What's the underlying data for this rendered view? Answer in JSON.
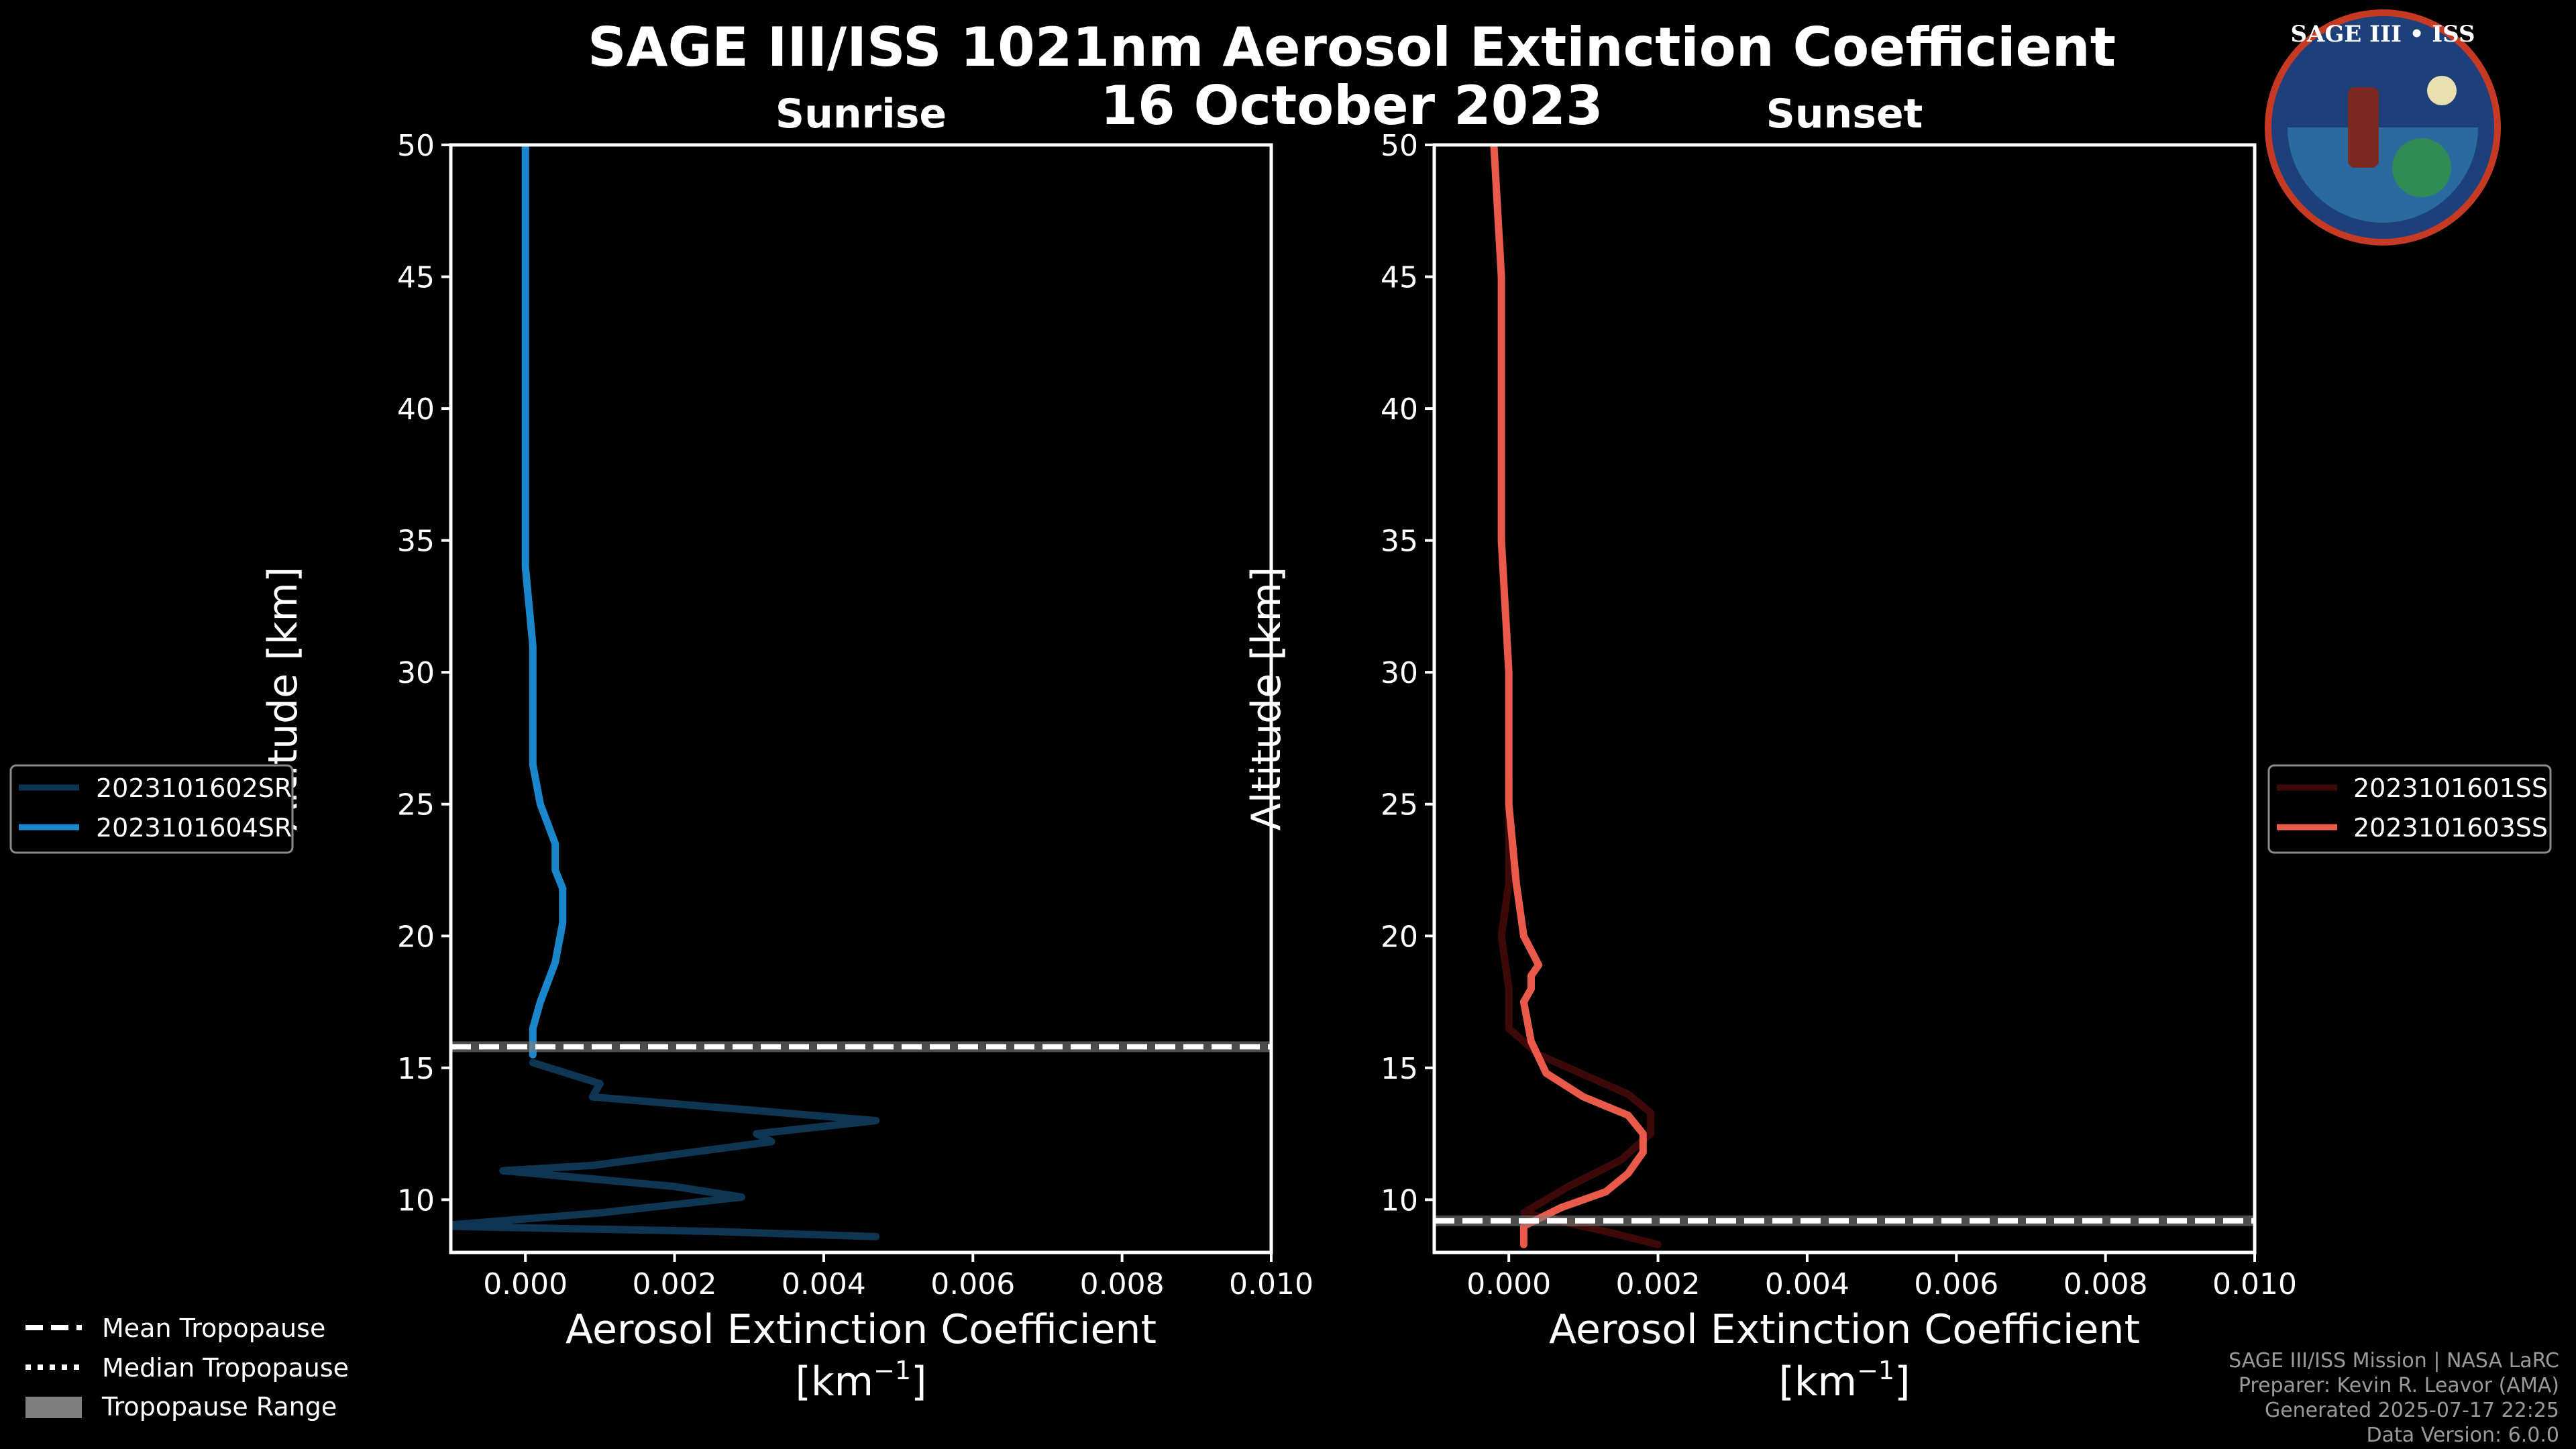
{
  "title": "SAGE III/ISS 1021nm Aerosol Extinction Coefficient",
  "date": "16 October 2023",
  "logo_text": "SAGE III • ISS",
  "chart_data": [
    {
      "type": "line",
      "panel": "sunrise",
      "title": "Sunrise",
      "xlabel": "Aerosol Extinction Coefficient",
      "xunit_prefix": "[km",
      "xunit_exp": "−1",
      "xunit_suffix": "]",
      "ylabel": "Altitude [km]",
      "xlim": [
        -0.001,
        0.01
      ],
      "ylim": [
        8,
        50
      ],
      "xticks": [
        0.0,
        0.002,
        0.004,
        0.006,
        0.008,
        0.01
      ],
      "xtick_labels": [
        "0.000",
        "0.002",
        "0.004",
        "0.006",
        "0.008",
        "0.010"
      ],
      "yticks": [
        10,
        15,
        20,
        25,
        30,
        35,
        40,
        45,
        50
      ],
      "ytick_labels": [
        "10",
        "15",
        "20",
        "25",
        "30",
        "35",
        "40",
        "45",
        "50"
      ],
      "tropopause": {
        "type": "mean",
        "altitude": 15.8
      },
      "series": [
        {
          "name": "2023101602SR",
          "color": "#0e3552",
          "x": [
            0.0047,
            0.0025,
            -0.0012,
            0.001,
            0.0029,
            0.002,
            -0.0003,
            0.0009,
            0.0033,
            0.0031,
            0.0047,
            0.0009,
            0.001,
            0.0001
          ],
          "y": [
            8.6,
            8.8,
            9.0,
            9.5,
            10.1,
            10.5,
            11.1,
            11.3,
            12.2,
            12.5,
            13.0,
            13.9,
            14.4,
            15.2
          ]
        },
        {
          "name": "2023101604SR",
          "color": "#1a87cc",
          "x": [
            0.0001,
            0.0001,
            0.0002,
            0.0004,
            0.0005,
            0.0005,
            0.0004,
            0.0004,
            0.0002,
            0.0001,
            0.0001,
            0.0001,
            0.0,
            0.0,
            0.0,
            0.0
          ],
          "y": [
            15.5,
            16.5,
            17.5,
            19.0,
            20.5,
            21.8,
            22.5,
            23.5,
            25.0,
            26.5,
            28.5,
            31.0,
            34.0,
            38.0,
            44.0,
            50.0
          ]
        }
      ],
      "legend": [
        "2023101602SR",
        "2023101604SR"
      ]
    },
    {
      "type": "line",
      "panel": "sunset",
      "title": "Sunset",
      "xlabel": "Aerosol Extinction Coefficient",
      "xunit_prefix": "[km",
      "xunit_exp": "−1",
      "xunit_suffix": "]",
      "ylabel": "Altitude [km]",
      "xlim": [
        -0.001,
        0.01
      ],
      "ylim": [
        8,
        50
      ],
      "xticks": [
        0.0,
        0.002,
        0.004,
        0.006,
        0.008,
        0.01
      ],
      "xtick_labels": [
        "0.000",
        "0.002",
        "0.004",
        "0.006",
        "0.008",
        "0.010"
      ],
      "yticks": [
        10,
        15,
        20,
        25,
        30,
        35,
        40,
        45,
        50
      ],
      "ytick_labels": [
        "10",
        "15",
        "20",
        "25",
        "30",
        "35",
        "40",
        "45",
        "50"
      ],
      "tropopause": {
        "type": "mean",
        "altitude": 9.2
      },
      "series": [
        {
          "name": "2023101601SS",
          "color": "#3d0808",
          "x": [
            0.002,
            0.0013,
            0.0002,
            0.0008,
            0.0015,
            0.0019,
            0.0019,
            0.0016,
            0.0012,
            0.0004,
            0.0,
            0.0,
            -0.0001,
            0.0,
            0.0,
            0.0
          ],
          "y": [
            8.3,
            8.8,
            9.5,
            10.5,
            11.5,
            12.5,
            13.3,
            14.0,
            14.5,
            15.5,
            16.5,
            18.0,
            20.0,
            22.0,
            24.0,
            26.0
          ]
        },
        {
          "name": "2023101603SS",
          "color": "#ea5a4a",
          "x": [
            0.0002,
            0.0002,
            0.0007,
            0.0013,
            0.0016,
            0.0018,
            0.0018,
            0.0016,
            0.001,
            0.0005,
            0.0003,
            0.0002,
            0.0003,
            0.0003,
            0.0004,
            0.0002,
            0.0001,
            0.0,
            0.0,
            -0.0001,
            -0.0001,
            -0.0001,
            -0.0002
          ],
          "y": [
            8.3,
            9.0,
            9.7,
            10.3,
            11.0,
            11.8,
            12.5,
            13.2,
            13.9,
            14.8,
            16.0,
            17.5,
            18.0,
            18.5,
            18.9,
            20.0,
            22.0,
            25.0,
            30.0,
            35.0,
            40.0,
            45.0,
            50.0
          ]
        }
      ],
      "legend": [
        "2023101601SS",
        "2023101603SS"
      ]
    }
  ],
  "tropopause_legend": [
    "Mean Tropopause",
    "Median Tropopause",
    "Tropopause Range"
  ],
  "credits": [
    "SAGE III/ISS Mission | NASA LaRC",
    "Preparer: Kevin R. Leavor (AMA)",
    "Generated 2025-07-17 22:25",
    "Data Version: 6.0.0"
  ],
  "colors": {
    "background": "#000000",
    "axis": "#ffffff",
    "tropopause": "#ffffff",
    "range_band": "#7f7f7f"
  }
}
